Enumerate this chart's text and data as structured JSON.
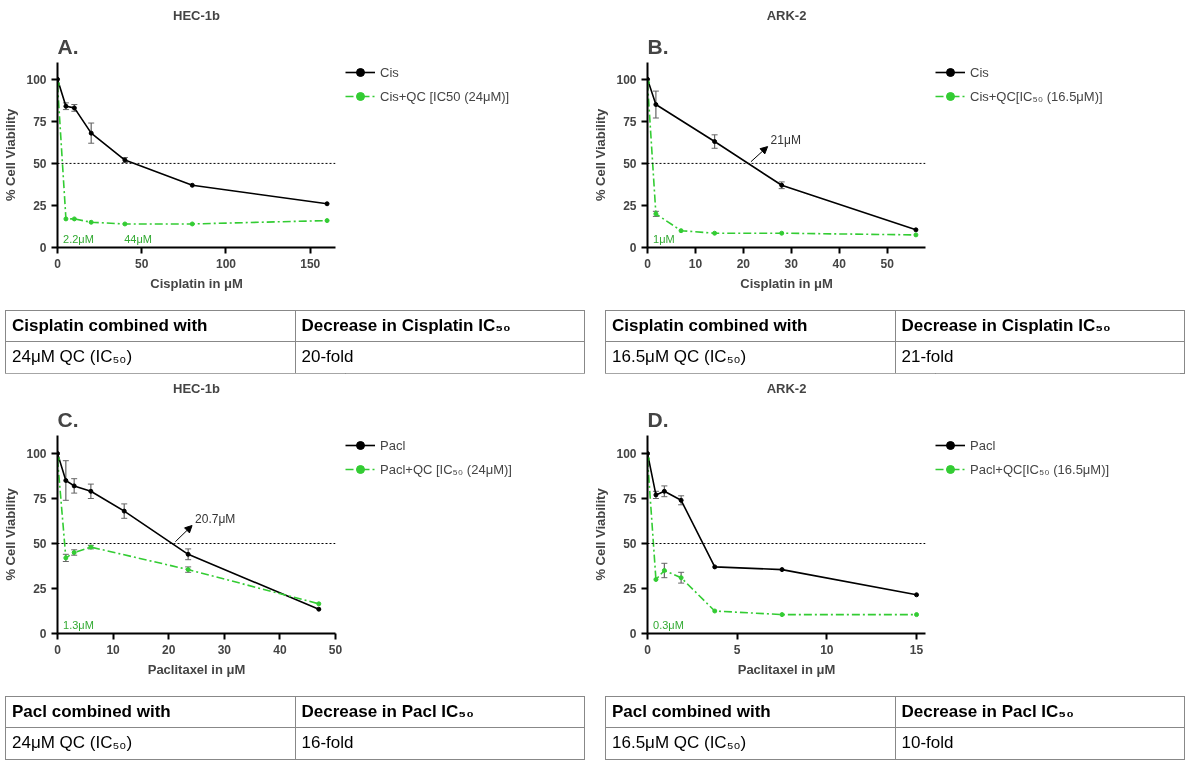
{
  "chart_data": [
    {
      "type": "line",
      "title": "HEC-1b",
      "xlabel": "Cisplatin in μM",
      "ylabel": "% Cell Viability",
      "xlim": [
        0,
        165
      ],
      "xticks": [
        0,
        50,
        100,
        150
      ],
      "ylim": [
        0,
        110
      ],
      "yticks": [
        0,
        25,
        50,
        75,
        100
      ],
      "marker": "circle",
      "legend": "right",
      "series": [
        {
          "name": "Cis",
          "color": "#000000",
          "line_style": "solid",
          "x": [
            0,
            5,
            10,
            20,
            40,
            80,
            160
          ],
          "values": [
            100,
            84,
            83,
            68,
            52,
            37,
            26
          ],
          "errors": [
            null,
            2,
            2,
            6,
            1.5,
            null,
            null
          ]
        },
        {
          "name": "Cis+QC [IC50 (24μM)]",
          "color": "#33cc33",
          "line_style": "dashed",
          "x": [
            0,
            5,
            10,
            20,
            40,
            80,
            160
          ],
          "values": [
            97,
            17,
            17,
            15,
            14,
            14,
            16
          ]
        }
      ],
      "ref_lines": [
        {
          "axis": "y",
          "value": 50,
          "line_style": "dotted"
        }
      ],
      "annotations": [
        "A.",
        "2.2μM",
        "44μM",
        "Cisplatin combined with",
        "Decrease in Cisplatin IC₅₀",
        "24μM QC (IC₅₀)",
        "20-fold"
      ]
    },
    {
      "type": "line",
      "title": "ARK-2",
      "xlabel": "Cisplatin in μM",
      "ylabel": "% Cell Viability",
      "xlim": [
        0,
        58
      ],
      "xticks": [
        0,
        10,
        20,
        30,
        40,
        50
      ],
      "ylim": [
        0,
        110
      ],
      "yticks": [
        0,
        25,
        50,
        75,
        100
      ],
      "marker": "circle",
      "legend": "right",
      "series": [
        {
          "name": "Cis",
          "color": "#000000",
          "line_style": "solid",
          "x": [
            0,
            1.75,
            14,
            28,
            56
          ],
          "values": [
            100,
            85,
            63,
            37,
            10.5
          ],
          "errors": [
            null,
            8,
            4,
            2,
            null
          ]
        },
        {
          "name": "Cis+QC[IC₅₀ (16.5μM)]",
          "color": "#33cc33",
          "line_style": "dashed",
          "x": [
            0,
            1.75,
            7,
            14,
            28,
            56
          ],
          "values": [
            98,
            20,
            10,
            8.5,
            8.5,
            7.5
          ],
          "errors": [
            null,
            1.5,
            null,
            null,
            null,
            null
          ]
        }
      ],
      "ref_lines": [
        {
          "axis": "y",
          "value": 50,
          "line_style": "dotted"
        }
      ],
      "annotations": [
        "B.",
        "1μM",
        {
          "text": "21μM",
          "x": 21,
          "y": 50
        },
        "Cisplatin combined with",
        "Decrease in Cisplatin IC₅₀",
        "16.5μM QC (IC₅₀)",
        "21-fold"
      ]
    },
    {
      "type": "line",
      "title": "HEC-1b",
      "xlabel": "Paclitaxel in μM",
      "ylabel": "% Cell Viability",
      "xlim": [
        0,
        50
      ],
      "xticks": [
        0,
        10,
        20,
        30,
        40,
        50
      ],
      "ylim": [
        0,
        110
      ],
      "yticks": [
        0,
        25,
        50,
        75,
        100
      ],
      "marker": "circle",
      "legend": "right",
      "series": [
        {
          "name": "Pacl",
          "color": "#000000",
          "line_style": "solid",
          "x": [
            0,
            1.5,
            3,
            6,
            12,
            23.5,
            47
          ],
          "values": [
            100,
            85,
            82,
            79,
            68,
            44,
            13.5
          ],
          "errors": [
            null,
            11,
            4,
            4,
            4,
            3,
            null
          ]
        },
        {
          "name": "Pacl+QC [IC₅₀ (24μM)]",
          "color": "#33cc33",
          "line_style": "dashed",
          "x": [
            0,
            1.5,
            3,
            6,
            23.5,
            47
          ],
          "values": [
            97,
            42,
            45,
            48,
            35.5,
            16.5
          ],
          "errors": [
            null,
            2,
            1.5,
            1,
            1.5,
            null
          ]
        }
      ],
      "ref_lines": [
        {
          "axis": "y",
          "value": 50,
          "line_style": "dotted"
        }
      ],
      "annotations": [
        "C.",
        "1.3μM",
        {
          "text": "20.7μM",
          "x": 20.7,
          "y": 50
        },
        "Pacl combined with",
        "Decrease in Pacl IC₅₀",
        "24μM QC (IC₅₀)",
        "16-fold"
      ]
    },
    {
      "type": "line",
      "title": "ARK-2",
      "xlabel": "Paclitaxel in μM",
      "ylabel": "% Cell Viability",
      "xlim": [
        0,
        15.5
      ],
      "xticks": [
        0,
        5,
        10,
        15
      ],
      "ylim": [
        0,
        110
      ],
      "yticks": [
        0,
        25,
        50,
        75,
        100
      ],
      "marker": "circle",
      "legend": "right",
      "series": [
        {
          "name": "Pacl",
          "color": "#000000",
          "line_style": "solid",
          "x": [
            0,
            0.47,
            0.94,
            1.875,
            3.75,
            7.5,
            15
          ],
          "values": [
            100,
            77,
            79,
            74,
            37,
            35.5,
            21.5
          ],
          "errors": [
            null,
            2,
            3,
            2.5,
            null,
            null,
            null
          ]
        },
        {
          "name": "Pacl+QC[IC₅₀ (16.5μM)]",
          "color": "#33cc33",
          "line_style": "dashed",
          "x": [
            0,
            0.47,
            0.94,
            1.875,
            3.75,
            7.5,
            15
          ],
          "values": [
            97,
            30,
            35,
            31,
            12.5,
            10.5,
            10.5
          ],
          "errors": [
            null,
            null,
            4,
            3,
            null,
            null,
            null
          ]
        }
      ],
      "ref_lines": [
        {
          "axis": "y",
          "value": 50,
          "line_style": "dotted"
        }
      ],
      "annotations": [
        "D.",
        "0.3μM",
        "Pacl combined with",
        "Decrease in Pacl IC₅₀",
        "16.5μM QC (IC₅₀)",
        "10-fold"
      ]
    }
  ]
}
